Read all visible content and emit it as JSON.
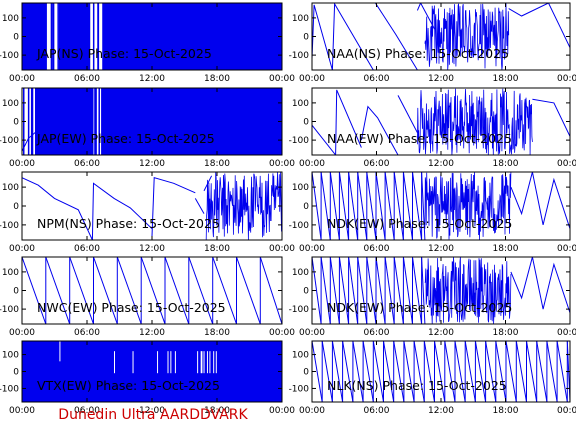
{
  "credit": "Dunedin Ultra AARDDVARK",
  "colors": {
    "trace": "#0000ee",
    "axes": "#000000",
    "credit": "#cc0000",
    "background": "#ffffff"
  },
  "chart_data": [
    {
      "type": "line",
      "title": "JAP(NS) Phase: 15-Oct-2025",
      "x_ticks": [
        "00:00",
        "06:00",
        "12:00",
        "18:00",
        "00:00"
      ],
      "y_ticks": [
        "100",
        "0",
        "-100"
      ],
      "xlim": [
        0,
        24
      ],
      "ylim": [
        -180,
        180
      ],
      "style": "dense",
      "gaps": [
        [
          2.3,
          3.4
        ],
        [
          6.3,
          7.5
        ]
      ]
    },
    {
      "type": "line",
      "title": "NAA(NS) Phase: 15-Oct-2025",
      "x_ticks": [
        "00:00",
        "06:00",
        "12:00",
        "18:00",
        "00:00"
      ],
      "y_ticks": [
        "100",
        "0",
        "-100"
      ],
      "xlim": [
        0,
        24
      ],
      "ylim": [
        -180,
        180
      ],
      "style": "sawtooth_noisy",
      "segments": [
        {
          "x": [
            0.0,
            0.2,
            1.9
          ],
          "y": [
            -120,
            170,
            -180
          ]
        },
        {
          "x": [
            1.9,
            2.1,
            5.7
          ],
          "y": [
            -180,
            175,
            -180
          ]
        },
        {
          "x": [
            5.9,
            7.8,
            9.8
          ],
          "y": [
            180,
            10,
            -180
          ]
        },
        {
          "x": [
            9.8,
            10.1,
            11.4
          ],
          "y": [
            140,
            180,
            40
          ]
        },
        {
          "x": [
            18.3,
            19.5,
            22.0,
            23.0,
            24.0
          ],
          "y": [
            150,
            110,
            180,
            60,
            -60
          ]
        }
      ],
      "noisy_ranges": [
        [
          10.5,
          18.3
        ]
      ]
    },
    {
      "type": "line",
      "title": "JAP(EW) Phase: 15-Oct-2025",
      "x_ticks": [
        "00:00",
        "06:00",
        "12:00",
        "18:00",
        "00:00"
      ],
      "y_ticks": [
        "100",
        "0",
        "-100"
      ],
      "xlim": [
        0,
        24
      ],
      "ylim": [
        -180,
        180
      ],
      "style": "dense",
      "gaps": [
        [
          0.0,
          1.2
        ],
        [
          6.6,
          7.3
        ]
      ],
      "segments": [
        {
          "x": [
            0.0,
            0.6,
            1.2,
            2.5,
            3.1
          ],
          "y": [
            -160,
            -90,
            -60,
            30,
            70
          ]
        },
        {
          "x": [
            23.5,
            24.0
          ],
          "y": [
            60,
            -80
          ]
        }
      ]
    },
    {
      "type": "line",
      "title": "NAA(EW) Phase: 15-Oct-2025",
      "x_ticks": [
        "00:00",
        "06:00",
        "12:00",
        "18:00",
        "00:00"
      ],
      "y_ticks": [
        "100",
        "0",
        "-100"
      ],
      "xlim": [
        0,
        24
      ],
      "ylim": [
        -180,
        180
      ],
      "style": "sawtooth_noisy",
      "segments": [
        {
          "x": [
            0.0,
            2.2
          ],
          "y": [
            -20,
            -180
          ]
        },
        {
          "x": [
            2.2,
            2.3,
            4.6
          ],
          "y": [
            -180,
            170,
            -140
          ]
        },
        {
          "x": [
            4.6,
            5.2,
            6.1,
            8.0
          ],
          "y": [
            -100,
            80,
            20,
            -180
          ]
        },
        {
          "x": [
            8.0,
            9.8
          ],
          "y": [
            140,
            -60
          ]
        },
        {
          "x": [
            20.5,
            22.5,
            24.0
          ],
          "y": [
            120,
            100,
            -80
          ]
        }
      ],
      "noisy_ranges": [
        [
          9.8,
          20.5
        ]
      ]
    },
    {
      "type": "line",
      "title": "NPM(NS) Phase: 15-Oct-2025",
      "x_ticks": [
        "00:00",
        "06:00",
        "12:00",
        "18:00",
        "00:00"
      ],
      "y_ticks": [
        "100",
        "0",
        "-100"
      ],
      "xlim": [
        0,
        24
      ],
      "ylim": [
        -180,
        180
      ],
      "style": "sawtooth_noisy",
      "segments": [
        {
          "x": [
            0.0,
            1.5,
            3.0,
            5.2,
            6.5
          ],
          "y": [
            150,
            110,
            40,
            -20,
            -180
          ]
        },
        {
          "x": [
            6.5,
            6.6,
            8.5,
            10.0,
            12.0
          ],
          "y": [
            -180,
            120,
            40,
            -10,
            -120
          ]
        },
        {
          "x": [
            12.0,
            12.2,
            14.0,
            16.0
          ],
          "y": [
            -160,
            150,
            120,
            70
          ]
        },
        {
          "x": [
            16.0,
            16.8
          ],
          "y": [
            40,
            -40
          ]
        },
        {
          "x": [
            16.8,
            17.5
          ],
          "y": [
            80,
            160
          ]
        }
      ],
      "noisy_ranges": [
        [
          17.0,
          24.0
        ]
      ]
    },
    {
      "type": "line",
      "title": "NDK(EW) Phase: 15-Oct-2025",
      "x_ticks": [
        "00:00",
        "06:00",
        "12:00",
        "18:00",
        "00:00"
      ],
      "y_ticks": [
        "100",
        "0",
        "-100"
      ],
      "xlim": [
        0,
        24
      ],
      "ylim": [
        -180,
        180
      ],
      "style": "sawtooth_noisy",
      "sawtooth": {
        "start": 0.0,
        "end": 10.5,
        "period": 0.85
      },
      "segments": [
        {
          "x": [
            18.5,
            19.5,
            20.5,
            21.5,
            22.5,
            24.0
          ],
          "y": [
            100,
            -40,
            180,
            -100,
            140,
            -120
          ]
        }
      ],
      "noisy_ranges": [
        [
          10.5,
          18.5
        ]
      ]
    },
    {
      "type": "line",
      "title": "NWC(EW) Phase: 15-Oct-2025",
      "x_ticks": [
        "00:00",
        "06:00",
        "12:00",
        "18:00",
        "00:00"
      ],
      "y_ticks": [
        "100",
        "0",
        "-100"
      ],
      "xlim": [
        0,
        24
      ],
      "ylim": [
        -180,
        180
      ],
      "style": "sawtooth",
      "sawtooth": {
        "start": 0.0,
        "end": 24.0,
        "period": 2.2
      }
    },
    {
      "type": "line",
      "title": "NDK(EW) Phase: 15-Oct-2025",
      "x_ticks": [
        "00:00",
        "06:00",
        "12:00",
        "18:00",
        "00:00"
      ],
      "y_ticks": [
        "100",
        "0",
        "-100"
      ],
      "xlim": [
        0,
        24
      ],
      "ylim": [
        -180,
        180
      ],
      "style": "sawtooth_noisy",
      "sawtooth": {
        "start": 0.0,
        "end": 10.5,
        "period": 0.85
      },
      "segments": [
        {
          "x": [
            18.5,
            19.5,
            20.5,
            21.5,
            22.5,
            24.0
          ],
          "y": [
            100,
            -40,
            180,
            -100,
            140,
            -120
          ]
        }
      ],
      "noisy_ranges": [
        [
          10.5,
          18.5
        ]
      ]
    },
    {
      "type": "line",
      "title": "VTX(EW) Phase: 15-Oct-2025",
      "x_ticks": [
        "00:00",
        "06:00",
        "12:00",
        "18:00",
        "00:00"
      ],
      "y_ticks": [
        "100",
        "0",
        "-100"
      ],
      "xlim": [
        0,
        24
      ],
      "ylim": [
        -180,
        180
      ],
      "style": "dense",
      "gaps": []
    },
    {
      "type": "line",
      "title": "NLK(NS) Phase: 15-Oct-2025",
      "x_ticks": [
        "00:00",
        "06:00",
        "12:00",
        "18:00",
        "00:00"
      ],
      "y_ticks": [
        "100",
        "0",
        "-100"
      ],
      "xlim": [
        0,
        24
      ],
      "ylim": [
        -180,
        180
      ],
      "style": "sawtooth",
      "sawtooth": {
        "start": 0.0,
        "end": 24.0,
        "period": 0.95
      }
    }
  ]
}
